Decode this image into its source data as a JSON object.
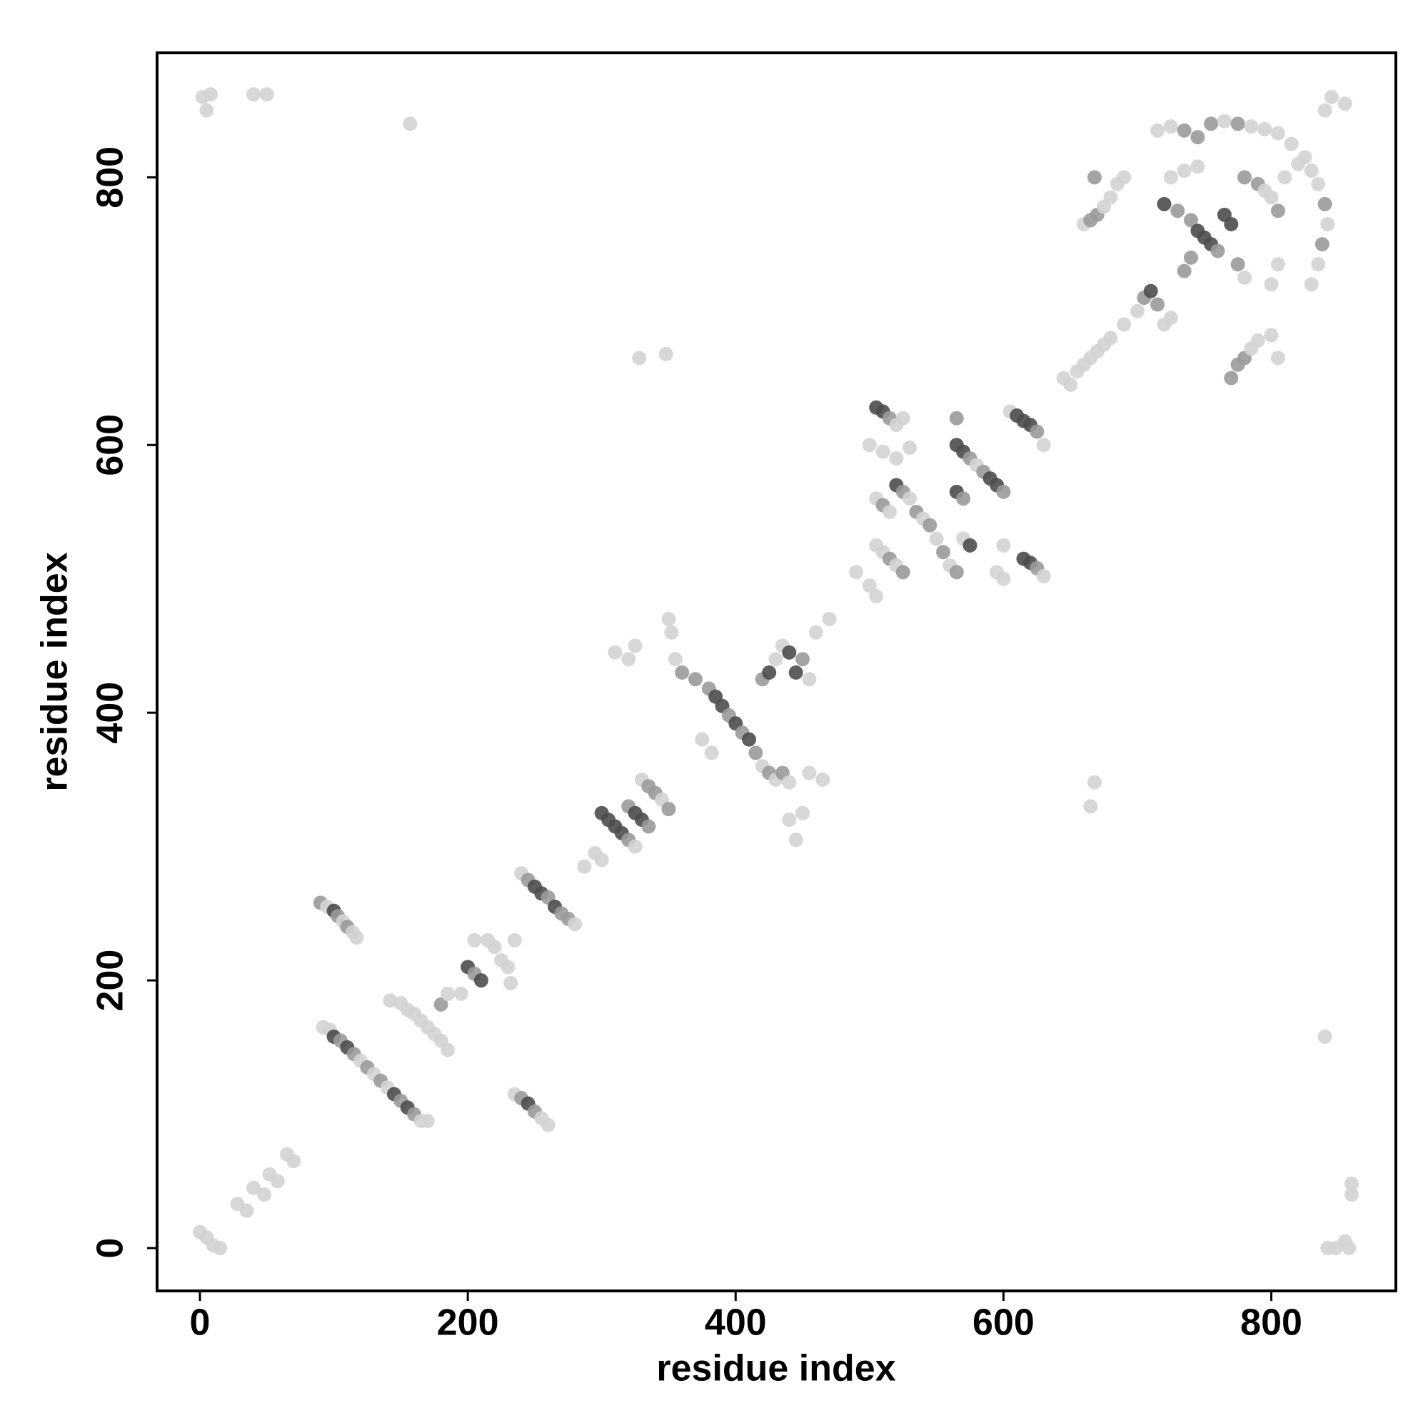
{
  "chart_data": {
    "type": "scatter",
    "x_label": "residue index",
    "y_label": "residue index",
    "xlim": [
      -32,
      893
    ],
    "ylim": [
      -32,
      893
    ],
    "xticks": [
      0,
      200,
      400,
      600,
      800
    ],
    "yticks": [
      0,
      200,
      400,
      600,
      800
    ],
    "x": [
      2,
      5,
      8,
      40,
      50,
      157,
      0,
      5,
      10,
      15,
      28,
      35,
      40,
      48,
      52,
      58,
      65,
      70,
      90,
      95,
      100,
      103,
      107,
      110,
      114,
      117,
      92,
      97,
      100,
      105,
      110,
      115,
      120,
      125,
      130,
      135,
      140,
      145,
      150,
      155,
      160,
      165,
      170,
      142,
      150,
      155,
      160,
      165,
      170,
      175,
      180,
      185,
      180,
      185,
      195,
      200,
      205,
      210,
      205,
      215,
      220,
      225,
      230,
      232,
      235,
      235,
      240,
      245,
      250,
      255,
      260,
      240,
      245,
      250,
      255,
      260,
      265,
      270,
      275,
      280,
      287,
      295,
      300,
      300,
      305,
      310,
      315,
      320,
      325,
      320,
      325,
      330,
      335,
      330,
      335,
      340,
      345,
      350,
      310,
      320,
      325,
      328,
      348,
      350,
      352,
      355,
      360,
      370,
      380,
      385,
      390,
      395,
      400,
      405,
      410,
      415,
      420,
      425,
      430,
      435,
      440,
      375,
      382,
      420,
      425,
      430,
      435,
      440,
      445,
      450,
      455,
      440,
      445,
      450,
      455,
      460,
      470,
      465,
      490,
      500,
      505,
      505,
      510,
      515,
      520,
      525,
      500,
      510,
      530,
      520,
      505,
      510,
      515,
      520,
      525,
      530,
      535,
      540,
      545,
      550,
      555,
      560,
      565,
      505,
      510,
      515,
      520,
      525,
      570,
      575,
      565,
      570,
      565,
      570,
      575,
      580,
      585,
      590,
      595,
      600,
      565,
      600,
      595,
      600,
      605,
      610,
      615,
      620,
      625,
      630,
      615,
      620,
      625,
      630,
      665,
      668,
      645,
      650,
      655,
      660,
      665,
      670,
      675,
      680,
      690,
      700,
      705,
      710,
      715,
      720,
      725,
      660,
      665,
      670,
      675,
      680,
      685,
      690,
      668,
      715,
      725,
      735,
      745,
      755,
      765,
      775,
      785,
      795,
      805,
      815,
      825,
      830,
      835,
      840,
      842,
      838,
      835,
      830,
      720,
      730,
      740,
      745,
      750,
      755,
      760,
      765,
      770,
      740,
      735,
      775,
      780,
      725,
      735,
      745,
      770,
      775,
      780,
      785,
      790,
      800,
      805,
      800,
      805,
      780,
      790,
      795,
      800,
      805,
      810,
      820,
      840,
      845,
      855,
      840,
      842,
      848,
      855,
      858,
      860,
      860
    ],
    "y": [
      860,
      850,
      862,
      862,
      862,
      840,
      12,
      8,
      2,
      0,
      33,
      28,
      45,
      40,
      55,
      50,
      70,
      65,
      258,
      255,
      252,
      248,
      244,
      240,
      236,
      232,
      165,
      163,
      158,
      155,
      150,
      145,
      140,
      135,
      130,
      125,
      120,
      115,
      110,
      105,
      100,
      95,
      95,
      185,
      183,
      178,
      175,
      170,
      165,
      160,
      155,
      148,
      182,
      190,
      190,
      210,
      205,
      200,
      230,
      230,
      225,
      215,
      210,
      198,
      230,
      115,
      112,
      108,
      102,
      97,
      92,
      280,
      275,
      270,
      265,
      262,
      255,
      250,
      246,
      242,
      285,
      295,
      290,
      325,
      320,
      315,
      310,
      305,
      300,
      330,
      325,
      320,
      315,
      350,
      345,
      340,
      335,
      328,
      445,
      440,
      450,
      665,
      668,
      470,
      460,
      440,
      430,
      425,
      418,
      412,
      405,
      398,
      392,
      385,
      380,
      370,
      360,
      355,
      350,
      355,
      348,
      380,
      370,
      425,
      430,
      440,
      450,
      445,
      430,
      440,
      425,
      320,
      305,
      325,
      355,
      460,
      470,
      350,
      505,
      495,
      487,
      628,
      625,
      620,
      615,
      620,
      600,
      595,
      598,
      590,
      560,
      555,
      550,
      570,
      565,
      560,
      550,
      545,
      540,
      530,
      520,
      510,
      505,
      525,
      520,
      515,
      510,
      505,
      530,
      525,
      565,
      560,
      600,
      595,
      590,
      585,
      580,
      575,
      570,
      565,
      620,
      525,
      505,
      500,
      625,
      622,
      618,
      615,
      610,
      600,
      515,
      512,
      508,
      502,
      330,
      348,
      650,
      645,
      655,
      660,
      665,
      670,
      675,
      680,
      690,
      700,
      710,
      715,
      705,
      690,
      695,
      765,
      768,
      772,
      778,
      785,
      795,
      800,
      800,
      835,
      838,
      835,
      830,
      840,
      842,
      840,
      838,
      836,
      833,
      825,
      815,
      805,
      795,
      780,
      765,
      750,
      735,
      720,
      780,
      775,
      768,
      760,
      755,
      750,
      745,
      772,
      765,
      740,
      730,
      735,
      725,
      800,
      805,
      808,
      650,
      660,
      665,
      672,
      678,
      682,
      665,
      720,
      735,
      800,
      795,
      790,
      785,
      775,
      800,
      810,
      850,
      860,
      855,
      158,
      0,
      0,
      5,
      0,
      40,
      48
    ],
    "colors": [
      "#d3d3d3",
      "#d3d3d3",
      "#d3d3d3",
      "#d3d3d3",
      "#d3d3d3",
      "#d3d3d3",
      "#d3d3d3",
      "#d3d3d3",
      "#d3d3d3",
      "#d3d3d3",
      "#d3d3d3",
      "#d3d3d3",
      "#d3d3d3",
      "#d3d3d3",
      "#d3d3d3",
      "#d3d3d3",
      "#d3d3d3",
      "#d3d3d3",
      "#9a9a9a",
      "#d3d3d3",
      "#4d4d4d",
      "#9a9a9a",
      "#d3d3d3",
      "#9a9a9a",
      "#d3d3d3",
      "#d3d3d3",
      "#d3d3d3",
      "#d3d3d3",
      "#4d4d4d",
      "#9a9a9a",
      "#4d4d4d",
      "#9a9a9a",
      "#d3d3d3",
      "#9a9a9a",
      "#d3d3d3",
      "#9a9a9a",
      "#d3d3d3",
      "#4d4d4d",
      "#9a9a9a",
      "#4d4d4d",
      "#9a9a9a",
      "#d3d3d3",
      "#d3d3d3",
      "#d3d3d3",
      "#d3d3d3",
      "#d3d3d3",
      "#d3d3d3",
      "#d3d3d3",
      "#d3d3d3",
      "#d3d3d3",
      "#d3d3d3",
      "#d3d3d3",
      "#9a9a9a",
      "#d3d3d3",
      "#d3d3d3",
      "#4d4d4d",
      "#9a9a9a",
      "#4d4d4d",
      "#d3d3d3",
      "#d3d3d3",
      "#d3d3d3",
      "#d3d3d3",
      "#d3d3d3",
      "#d3d3d3",
      "#d3d3d3",
      "#d3d3d3",
      "#9a9a9a",
      "#4d4d4d",
      "#9a9a9a",
      "#d3d3d3",
      "#d3d3d3",
      "#d3d3d3",
      "#9a9a9a",
      "#4d4d4d",
      "#4d4d4d",
      "#9a9a9a",
      "#4d4d4d",
      "#9a9a9a",
      "#9a9a9a",
      "#d3d3d3",
      "#d3d3d3",
      "#d3d3d3",
      "#d3d3d3",
      "#4d4d4d",
      "#4d4d4d",
      "#4d4d4d",
      "#4d4d4d",
      "#9a9a9a",
      "#d3d3d3",
      "#9a9a9a",
      "#4d4d4d",
      "#4d4d4d",
      "#9a9a9a",
      "#d3d3d3",
      "#9a9a9a",
      "#9a9a9a",
      "#d3d3d3",
      "#9a9a9a",
      "#d3d3d3",
      "#d3d3d3",
      "#d3d3d3",
      "#d3d3d3",
      "#d3d3d3",
      "#d3d3d3",
      "#d3d3d3",
      "#d3d3d3",
      "#9a9a9a",
      "#9a9a9a",
      "#9a9a9a",
      "#4d4d4d",
      "#4d4d4d",
      "#9a9a9a",
      "#4d4d4d",
      "#9a9a9a",
      "#4d4d4d",
      "#9a9a9a",
      "#d3d3d3",
      "#9a9a9a",
      "#d3d3d3",
      "#9a9a9a",
      "#d3d3d3",
      "#d3d3d3",
      "#d3d3d3",
      "#9a9a9a",
      "#4d4d4d",
      "#d3d3d3",
      "#d3d3d3",
      "#4d4d4d",
      "#4d4d4d",
      "#9a9a9a",
      "#d3d3d3",
      "#d3d3d3",
      "#d3d3d3",
      "#d3d3d3",
      "#d3d3d3",
      "#d3d3d3",
      "#d3d3d3",
      "#d3d3d3",
      "#d3d3d3",
      "#d3d3d3",
      "#d3d3d3",
      "#4d4d4d",
      "#4d4d4d",
      "#9a9a9a",
      "#d3d3d3",
      "#d3d3d3",
      "#d3d3d3",
      "#d3d3d3",
      "#d3d3d3",
      "#d3d3d3",
      "#d3d3d3",
      "#9a9a9a",
      "#d3d3d3",
      "#4d4d4d",
      "#9a9a9a",
      "#d3d3d3",
      "#9a9a9a",
      "#d3d3d3",
      "#9a9a9a",
      "#d3d3d3",
      "#9a9a9a",
      "#d3d3d3",
      "#9a9a9a",
      "#d3d3d3",
      "#d3d3d3",
      "#9a9a9a",
      "#d3d3d3",
      "#9a9a9a",
      "#d3d3d3",
      "#4d4d4d",
      "#4d4d4d",
      "#9a9a9a",
      "#4d4d4d",
      "#4d4d4d",
      "#9a9a9a",
      "#d3d3d3",
      "#9a9a9a",
      "#4d4d4d",
      "#4d4d4d",
      "#9a9a9a",
      "#9a9a9a",
      "#d3d3d3",
      "#d3d3d3",
      "#d3d3d3",
      "#d3d3d3",
      "#4d4d4d",
      "#4d4d4d",
      "#4d4d4d",
      "#9a9a9a",
      "#d3d3d3",
      "#4d4d4d",
      "#4d4d4d",
      "#9a9a9a",
      "#d3d3d3",
      "#d3d3d3",
      "#d3d3d3",
      "#d3d3d3",
      "#d3d3d3",
      "#d3d3d3",
      "#d3d3d3",
      "#d3d3d3",
      "#d3d3d3",
      "#d3d3d3",
      "#d3d3d3",
      "#d3d3d3",
      "#d3d3d3",
      "#9a9a9a",
      "#4d4d4d",
      "#9a9a9a",
      "#d3d3d3",
      "#d3d3d3",
      "#d3d3d3",
      "#9a9a9a",
      "#9a9a9a",
      "#d3d3d3",
      "#d3d3d3",
      "#d3d3d3",
      "#d3d3d3",
      "#9a9a9a",
      "#d3d3d3",
      "#d3d3d3",
      "#9a9a9a",
      "#9a9a9a",
      "#9a9a9a",
      "#d3d3d3",
      "#9a9a9a",
      "#d3d3d3",
      "#d3d3d3",
      "#d3d3d3",
      "#d3d3d3",
      "#d3d3d3",
      "#d3d3d3",
      "#d3d3d3",
      "#9a9a9a",
      "#d3d3d3",
      "#9a9a9a",
      "#d3d3d3",
      "#d3d3d3",
      "#4d4d4d",
      "#9a9a9a",
      "#9a9a9a",
      "#4d4d4d",
      "#4d4d4d",
      "#4d4d4d",
      "#9a9a9a",
      "#4d4d4d",
      "#4d4d4d",
      "#9a9a9a",
      "#9a9a9a",
      "#9a9a9a",
      "#d3d3d3",
      "#d3d3d3",
      "#d3d3d3",
      "#d3d3d3",
      "#9a9a9a",
      "#9a9a9a",
      "#9a9a9a",
      "#d3d3d3",
      "#d3d3d3",
      "#d3d3d3",
      "#d3d3d3",
      "#d3d3d3",
      "#d3d3d3",
      "#9a9a9a",
      "#9a9a9a",
      "#d3d3d3",
      "#d3d3d3",
      "#9a9a9a",
      "#d3d3d3",
      "#d3d3d3",
      "#d3d3d3",
      "#d3d3d3",
      "#d3d3d3",
      "#d3d3d3",
      "#d3d3d3",
      "#d3d3d3",
      "#d3d3d3",
      "#d3d3d3",
      "#d3d3d3",
      "#d3d3d3"
    ]
  }
}
